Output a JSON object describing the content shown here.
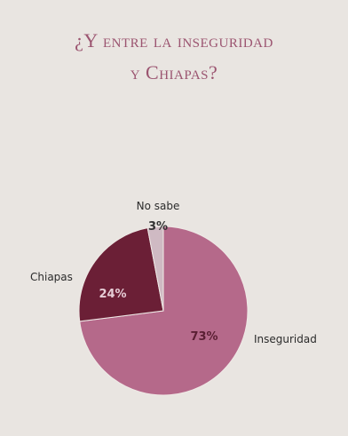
{
  "title_line1": "¿Y entre la inseguridad",
  "title_line2": "y Chiapas?",
  "chart_data": {
    "type": "pie",
    "slices": [
      {
        "label": "Inseguridad",
        "value": 73,
        "value_label": "73%",
        "color": "#b5698a",
        "text_color": "#5a1f33"
      },
      {
        "label": "Chiapas",
        "value": 24,
        "value_label": "24%",
        "color": "#6b1f36",
        "text_color": "#e6cdd6"
      },
      {
        "label": "No sabe",
        "value": 3,
        "value_label": "3%",
        "color": "#cfbac3",
        "text_color": "#333333"
      }
    ]
  }
}
